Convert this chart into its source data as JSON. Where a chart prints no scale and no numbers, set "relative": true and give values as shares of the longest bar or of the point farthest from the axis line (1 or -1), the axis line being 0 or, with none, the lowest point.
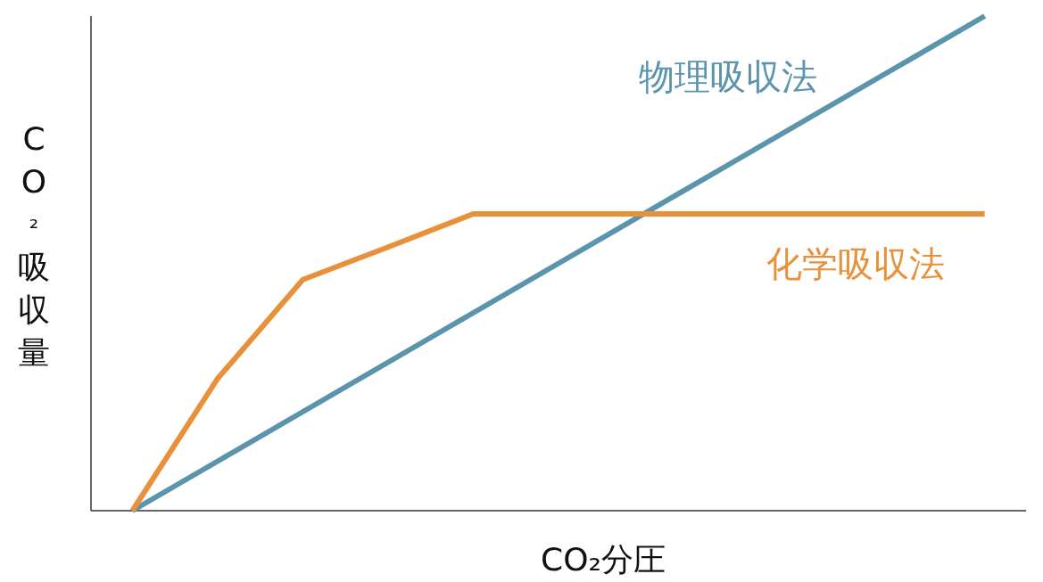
{
  "chart_data": {
    "type": "line",
    "relative": true,
    "xlabel": "CO₂分圧",
    "ylabel": "CO₂吸収量",
    "categories": [
      null,
      null,
      null,
      null,
      null,
      null,
      null,
      null,
      null,
      null,
      null
    ],
    "series": [
      {
        "name": "物理吸収法",
        "color": "#5b94ad",
        "values": [
          0,
          0.1,
          0.2,
          0.3,
          0.4,
          0.5,
          0.6,
          0.7,
          0.8,
          0.9,
          1
        ]
      },
      {
        "name": "化学吸収法",
        "color": "#e8913a",
        "values": [
          0,
          0.267,
          0.467,
          0.533,
          0.6,
          0.6,
          0.6,
          0.6,
          0.6,
          0.6,
          0.6
        ]
      }
    ]
  }
}
